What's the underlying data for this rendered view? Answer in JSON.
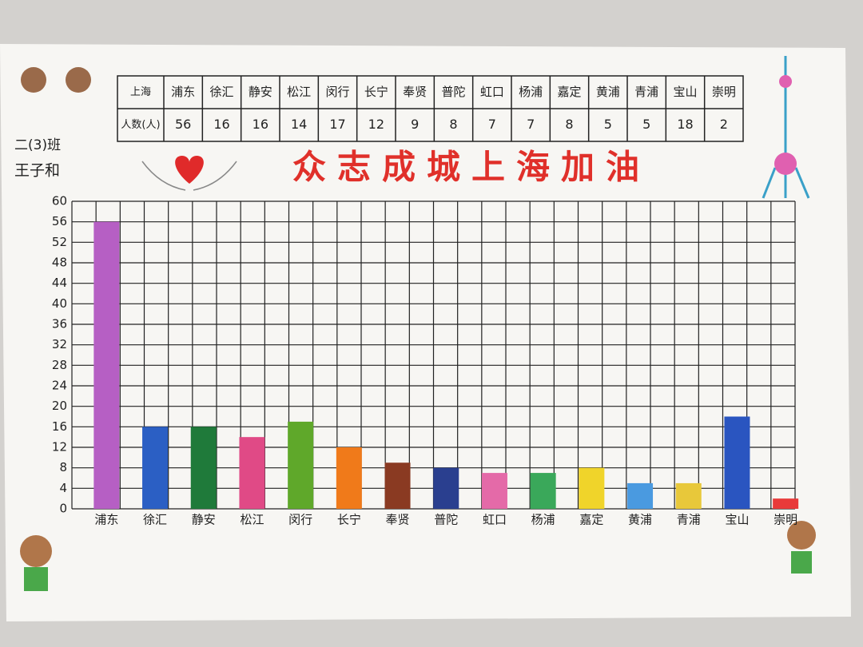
{
  "chart_data": {
    "type": "bar",
    "title": "众志成城上海加油",
    "class_name": "二(3)班",
    "author": "王子和",
    "table_row_labels": [
      "上海",
      "人数(人)"
    ],
    "categories": [
      "浦东",
      "徐汇",
      "静安",
      "松江",
      "闵行",
      "长宁",
      "奉贤",
      "普陀",
      "虹口",
      "杨浦",
      "嘉定",
      "黄浦",
      "青浦",
      "宝山",
      "崇明"
    ],
    "values": [
      56,
      16,
      16,
      14,
      17,
      12,
      9,
      8,
      7,
      7,
      8,
      5,
      5,
      18,
      2
    ],
    "colors": [
      "#b65fc4",
      "#2b5fc4",
      "#1f7a3a",
      "#e04a86",
      "#5fa82a",
      "#f07a1a",
      "#8a3a22",
      "#2a3f8f",
      "#e46aa8",
      "#3aa85a",
      "#f0d42a",
      "#4a9ae0",
      "#e8c83a",
      "#2a55c0",
      "#e83a3a"
    ],
    "ylim": [
      0,
      60
    ],
    "yticks": [
      0,
      4,
      8,
      12,
      16,
      20,
      24,
      28,
      32,
      36,
      40,
      44,
      48,
      52,
      56,
      60
    ],
    "grid": true
  }
}
